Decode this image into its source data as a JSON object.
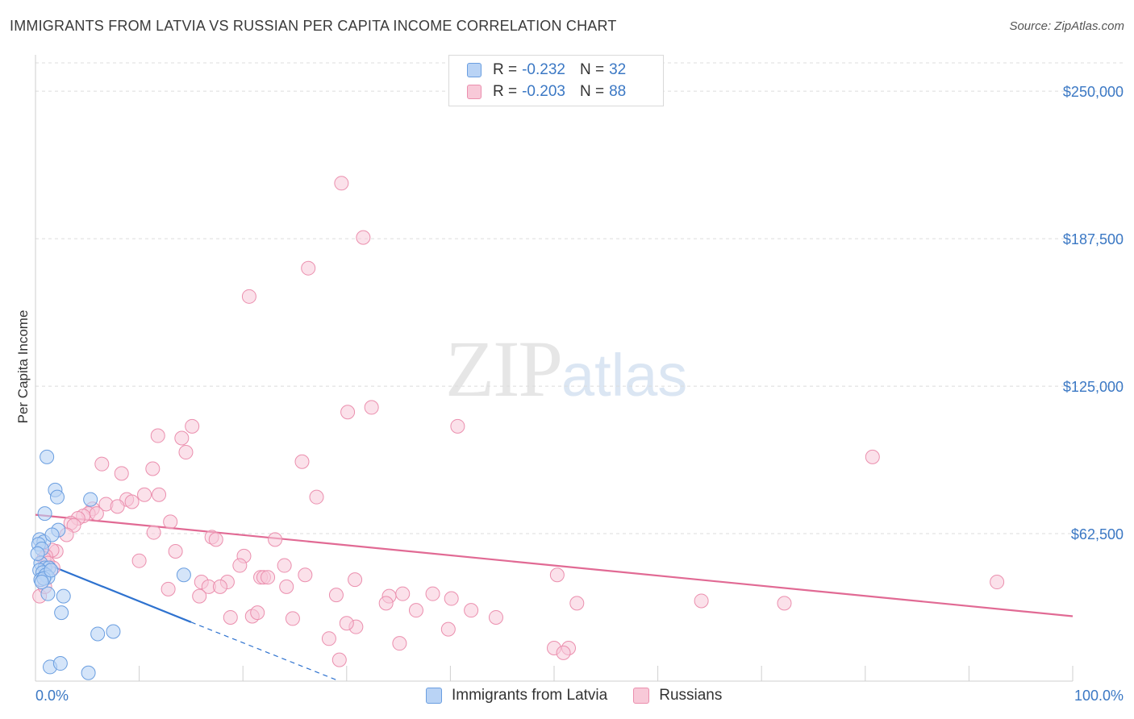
{
  "header": {
    "title": "IMMIGRANTS FROM LATVIA VS RUSSIAN PER CAPITA INCOME CORRELATION CHART",
    "source": "Source: ZipAtlas.com"
  },
  "watermark": {
    "zip": "ZIP",
    "atlas": "atlas"
  },
  "legend": {
    "rows": [
      {
        "r_label": "R =",
        "r_value": "-0.232",
        "n_label": "N =",
        "n_value": "32"
      },
      {
        "r_label": "R =",
        "r_value": "-0.203",
        "n_label": "N =",
        "n_value": "88"
      }
    ]
  },
  "colors": {
    "latvia_fill": "#b9d3f5",
    "latvia_stroke": "#6a9ee0",
    "latvia_line": "#2e72cf",
    "russian_fill": "#f8c9d8",
    "russian_stroke": "#eb8fae",
    "russian_line": "#e16a94",
    "grid": "#dcdcdc",
    "tick_text": "#3b78c4"
  },
  "chart_data": {
    "type": "scatter",
    "title": "IMMIGRANTS FROM LATVIA VS RUSSIAN PER CAPITA INCOME CORRELATION CHART",
    "xlabel": "",
    "ylabel": "Per Capita Income",
    "xlim": [
      0,
      100
    ],
    "ylim": [
      0,
      262000
    ],
    "x_tick_labels": [
      "0.0%",
      "100.0%"
    ],
    "y_ticks": [
      62500,
      125000,
      187500,
      250000
    ],
    "y_tick_labels": [
      "$62,500",
      "$125,000",
      "$187,500",
      "$250,000"
    ],
    "grid": true,
    "series": [
      {
        "name": "Immigrants from Latvia",
        "r": -0.232,
        "n": 32,
        "trend": {
          "x0": 0.0,
          "y0": 51500,
          "x1": 15.0,
          "y1": 25000,
          "dash_to_x": 29.3,
          "dash_to_y": 0
        },
        "points": [
          [
            1.1,
            95000
          ],
          [
            0.4,
            60000
          ],
          [
            0.8,
            59000
          ],
          [
            0.3,
            58000
          ],
          [
            0.6,
            56000
          ],
          [
            0.5,
            50000
          ],
          [
            0.9,
            48000
          ],
          [
            1.3,
            48000
          ],
          [
            0.4,
            47000
          ],
          [
            0.7,
            46000
          ],
          [
            1.0,
            45000
          ],
          [
            1.2,
            44000
          ],
          [
            0.5,
            43000
          ],
          [
            0.8,
            43500
          ],
          [
            1.5,
            47000
          ],
          [
            1.9,
            81000
          ],
          [
            2.1,
            78000
          ],
          [
            0.9,
            71000
          ],
          [
            2.2,
            64000
          ],
          [
            5.3,
            77000
          ],
          [
            2.7,
            36000
          ],
          [
            1.2,
            37000
          ],
          [
            2.5,
            29000
          ],
          [
            7.5,
            21000
          ],
          [
            6.0,
            20000
          ],
          [
            14.3,
            45000
          ],
          [
            1.4,
            6000
          ],
          [
            2.4,
            7500
          ],
          [
            5.1,
            3500
          ],
          [
            0.2,
            54000
          ],
          [
            0.6,
            42000
          ],
          [
            1.6,
            62000
          ]
        ]
      },
      {
        "name": "Russians",
        "r": -0.203,
        "n": 88,
        "trend": {
          "x0": 0.0,
          "y0": 70500,
          "x1": 100.0,
          "y1": 27500
        },
        "points": [
          [
            29.5,
            211000
          ],
          [
            31.6,
            188000
          ],
          [
            26.3,
            175000
          ],
          [
            20.6,
            163000
          ],
          [
            30.1,
            114000
          ],
          [
            32.4,
            116000
          ],
          [
            40.7,
            108000
          ],
          [
            15.1,
            108000
          ],
          [
            11.8,
            104000
          ],
          [
            14.1,
            103000
          ],
          [
            14.5,
            97000
          ],
          [
            25.7,
            93000
          ],
          [
            6.4,
            92000
          ],
          [
            8.3,
            88000
          ],
          [
            11.3,
            90000
          ],
          [
            11.9,
            79000
          ],
          [
            10.5,
            79000
          ],
          [
            8.8,
            77000
          ],
          [
            9.3,
            76000
          ],
          [
            6.8,
            75000
          ],
          [
            7.9,
            74000
          ],
          [
            5.5,
            73000
          ],
          [
            5.1,
            71000
          ],
          [
            5.9,
            71000
          ],
          [
            4.6,
            70000
          ],
          [
            4.1,
            69000
          ],
          [
            3.4,
            67000
          ],
          [
            3.7,
            66000
          ],
          [
            3.0,
            62000
          ],
          [
            13.0,
            67500
          ],
          [
            11.4,
            63000
          ],
          [
            17.0,
            61000
          ],
          [
            17.4,
            60000
          ],
          [
            23.1,
            60000
          ],
          [
            27.1,
            78000
          ],
          [
            13.5,
            55000
          ],
          [
            2.0,
            55000
          ],
          [
            1.6,
            55500
          ],
          [
            1.0,
            53000
          ],
          [
            0.8,
            52000
          ],
          [
            1.2,
            50000
          ],
          [
            1.7,
            48000
          ],
          [
            10.0,
            51000
          ],
          [
            20.1,
            53000
          ],
          [
            19.7,
            49000
          ],
          [
            24.0,
            49000
          ],
          [
            21.7,
            44000
          ],
          [
            22.0,
            44000
          ],
          [
            22.4,
            44000
          ],
          [
            26.0,
            45000
          ],
          [
            30.8,
            43000
          ],
          [
            16.0,
            42000
          ],
          [
            18.5,
            42000
          ],
          [
            16.7,
            40000
          ],
          [
            17.8,
            40000
          ],
          [
            12.8,
            39000
          ],
          [
            24.2,
            40000
          ],
          [
            15.8,
            36000
          ],
          [
            29.0,
            36500
          ],
          [
            34.1,
            36000
          ],
          [
            35.4,
            37000
          ],
          [
            38.3,
            37000
          ],
          [
            40.1,
            35000
          ],
          [
            42.0,
            30000
          ],
          [
            36.7,
            30000
          ],
          [
            33.8,
            33000
          ],
          [
            44.4,
            27000
          ],
          [
            18.8,
            27000
          ],
          [
            20.9,
            27500
          ],
          [
            21.4,
            29000
          ],
          [
            24.8,
            26500
          ],
          [
            30.9,
            23000
          ],
          [
            30.0,
            24500
          ],
          [
            39.8,
            22000
          ],
          [
            28.3,
            18000
          ],
          [
            35.1,
            16000
          ],
          [
            50.3,
            45000
          ],
          [
            52.2,
            33000
          ],
          [
            64.2,
            34000
          ],
          [
            72.2,
            33000
          ],
          [
            80.7,
            95000
          ],
          [
            92.7,
            42000
          ],
          [
            50.0,
            14000
          ],
          [
            51.4,
            14000
          ],
          [
            50.9,
            12000
          ],
          [
            29.3,
            9000
          ],
          [
            0.4,
            36000
          ],
          [
            0.9,
            40000
          ]
        ]
      }
    ]
  }
}
